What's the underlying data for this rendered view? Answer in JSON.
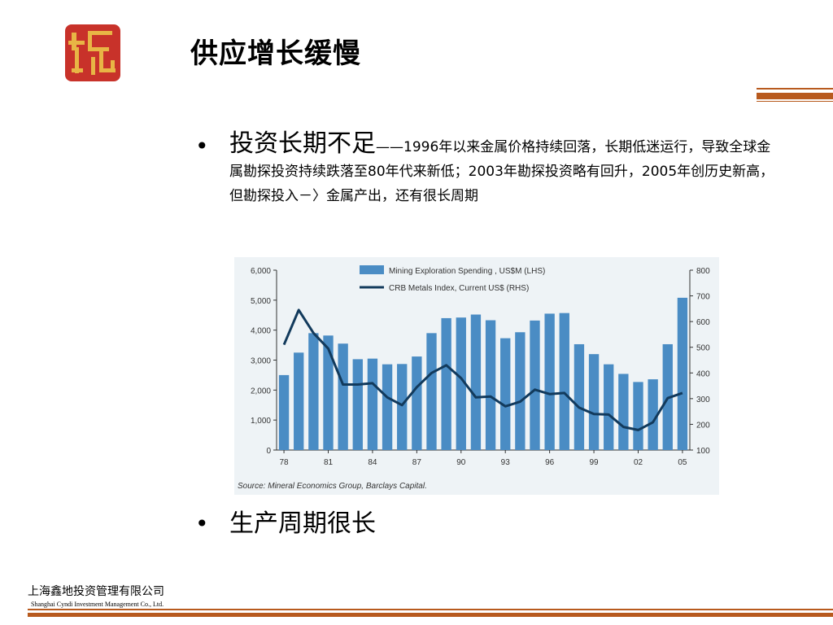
{
  "slide": {
    "title": "供应增长缓慢",
    "bullets": [
      {
        "head": "投资长期不足",
        "text": "——1996年以来金属价格持续回落，长期低迷运行，导致全球金属勘探投资持续跌落至80年代来新低；2003年勘探投资略有回升，2005年创历史新高，但勘探投入－〉金属产出，还有很长周期"
      },
      {
        "head": "生产周期很长"
      }
    ],
    "footer": {
      "company_cn": "上海鑫地投资管理有限公司",
      "company_en": "Shanghai Cyndi Investment Management Co., Ltd."
    },
    "colors": {
      "accent": "#b85a1e",
      "bar": "#4a8cc4",
      "line": "#123a5c",
      "logo": "#c8322a"
    }
  },
  "chart_data": {
    "type": "bar",
    "categories": [
      "78",
      "79",
      "80",
      "81",
      "82",
      "83",
      "84",
      "85",
      "86",
      "87",
      "88",
      "89",
      "90",
      "91",
      "92",
      "93",
      "94",
      "95",
      "96",
      "97",
      "98",
      "99",
      "00",
      "01",
      "02",
      "03",
      "04",
      "05"
    ],
    "x_tick_labels": [
      "78",
      "81",
      "84",
      "87",
      "90",
      "93",
      "96",
      "99",
      "02",
      "05"
    ],
    "series": [
      {
        "name": "Mining Exploration Spending , US$M (LHS)",
        "type": "bar",
        "axis": "left",
        "values": [
          2500,
          3250,
          3900,
          3820,
          3550,
          3030,
          3050,
          2860,
          2870,
          3120,
          3900,
          4400,
          4420,
          4520,
          4330,
          3730,
          3930,
          4320,
          4550,
          4570,
          3530,
          3200,
          2860,
          2540,
          2270,
          2360,
          3530,
          5080
        ]
      },
      {
        "name": "CRB Metals Index, Current US$ (RHS)",
        "type": "line",
        "axis": "right",
        "values": [
          510,
          645,
          555,
          495,
          355,
          355,
          360,
          305,
          275,
          345,
          400,
          430,
          380,
          305,
          308,
          270,
          288,
          335,
          318,
          322,
          265,
          240,
          238,
          190,
          178,
          208,
          302,
          322
        ]
      }
    ],
    "y_left": {
      "ylim": [
        0,
        6000
      ],
      "ticks": [
        "0",
        "1,000",
        "2,000",
        "3,000",
        "4,000",
        "5,000",
        "6,000"
      ]
    },
    "y_right": {
      "ylim": [
        100,
        800
      ],
      "ticks": [
        "100",
        "200",
        "300",
        "400",
        "500",
        "600",
        "700",
        "800"
      ]
    },
    "legend_position": "top-center",
    "grid": false,
    "source": "Source: Mineral Economics Group, Barclays Capital."
  }
}
